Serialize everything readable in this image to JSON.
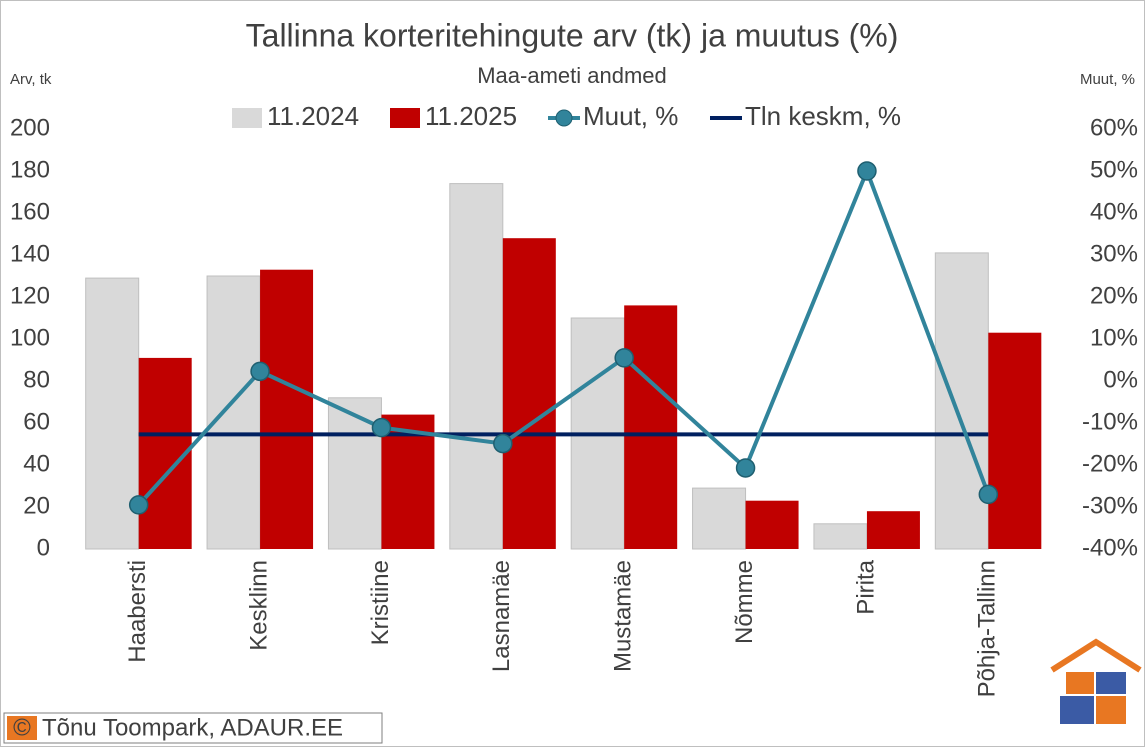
{
  "chart_data": {
    "type": "bar_line",
    "title": "Tallinna korteritehingute arv (tk) ja muutus (%)",
    "subtitle": "Maa-ameti andmed",
    "ylabel": "Arv, tk",
    "y2label": "Muut, %",
    "categories": [
      "Haabersti",
      "Kesklinn",
      "Kristiine",
      "Lasnamäe",
      "Mustamäe",
      "Nõmme",
      "Pirita",
      "Põhja-Tallinn"
    ],
    "series": [
      {
        "name": "11.2024",
        "type": "bar",
        "color": "#d9d9d9",
        "values": [
          129,
          130,
          72,
          174,
          110,
          29,
          12,
          141
        ]
      },
      {
        "name": "11.2025",
        "type": "bar",
        "color": "#c00000",
        "values": [
          91,
          133,
          64,
          148,
          116,
          23,
          18,
          103
        ]
      },
      {
        "name": "Muut, %",
        "type": "line",
        "axis": "y2",
        "color": "#31849b",
        "marker": true,
        "values": [
          -29.5,
          2.3,
          -11.1,
          -14.9,
          5.5,
          -20.7,
          50,
          -27.0
        ]
      },
      {
        "name": "Tln keskm, %",
        "type": "line",
        "axis": "y2",
        "color": "#002060",
        "marker": false,
        "values": [
          -12.7,
          -12.7,
          -12.7,
          -12.7,
          -12.7,
          -12.7,
          -12.7,
          -12.7
        ]
      }
    ],
    "ylim": [
      0,
      200
    ],
    "yticks": [
      0,
      20,
      40,
      60,
      80,
      100,
      120,
      140,
      160,
      180,
      200
    ],
    "y2lim": [
      -40,
      60
    ],
    "y2ticks": [
      {
        "value": -40,
        "label": "-40%"
      },
      {
        "value": -30,
        "label": "-30%"
      },
      {
        "value": -20,
        "label": "-20%"
      },
      {
        "value": -10,
        "label": "-10%"
      },
      {
        "value": 0,
        "label": "0%"
      },
      {
        "value": 10,
        "label": "10%"
      },
      {
        "value": 20,
        "label": "20%"
      },
      {
        "value": 30,
        "label": "30%"
      },
      {
        "value": 40,
        "label": "40%"
      },
      {
        "value": 50,
        "label": "50%"
      },
      {
        "value": 60,
        "label": "60%"
      }
    ],
    "grid": false,
    "legend": "top"
  },
  "footer": {
    "symbol": "©",
    "credit": "Tõnu Toompark, ADAUR.EE"
  }
}
